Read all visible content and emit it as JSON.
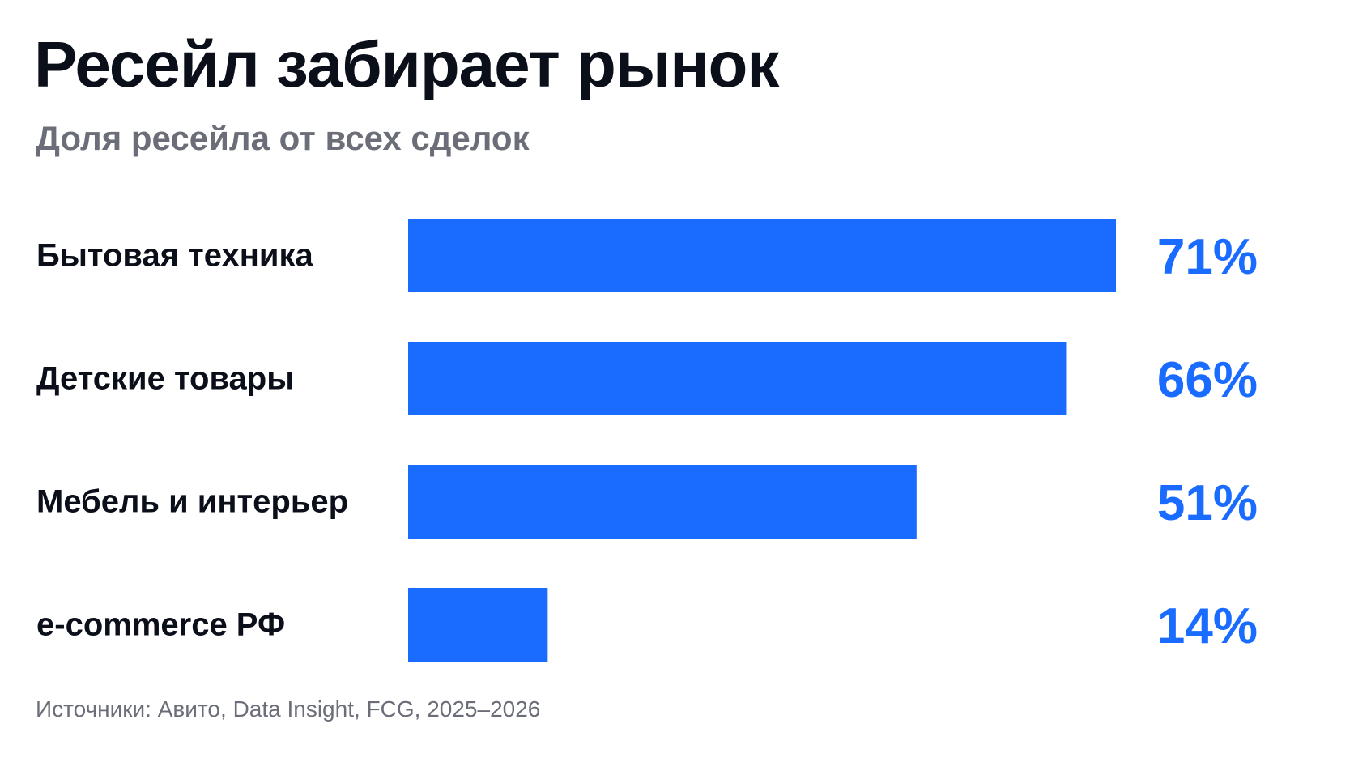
{
  "header": {
    "title": "Ресейл забирает рынок",
    "subtitle": "Доля ресейла от всех сделок"
  },
  "chart_data": {
    "type": "bar",
    "orientation": "horizontal",
    "title": "Ресейл забирает рынок",
    "subtitle": "Доля ресейла от всех сделок",
    "categories": [
      "Бытовая техника",
      "Детские товары",
      "Мебель и интерьер",
      "e-commerce РФ"
    ],
    "values": [
      71,
      66,
      51,
      14
    ],
    "value_labels": [
      "71%",
      "66%",
      "51%",
      "14%"
    ],
    "unit": "%",
    "xlim": [
      0,
      100
    ],
    "grid": false,
    "legend": "none",
    "colors": {
      "bar": "#1a6bff",
      "value_label": "#1a6bff",
      "category_label": "#0b0f1a"
    }
  },
  "footer": {
    "source": "Источники: Авито, Data Insight, FCG, 2025–2026"
  },
  "colors": {
    "background": "#ffffff",
    "title": "#0b0f1a",
    "muted": "#6b6e78",
    "accent": "#1a6bff"
  }
}
